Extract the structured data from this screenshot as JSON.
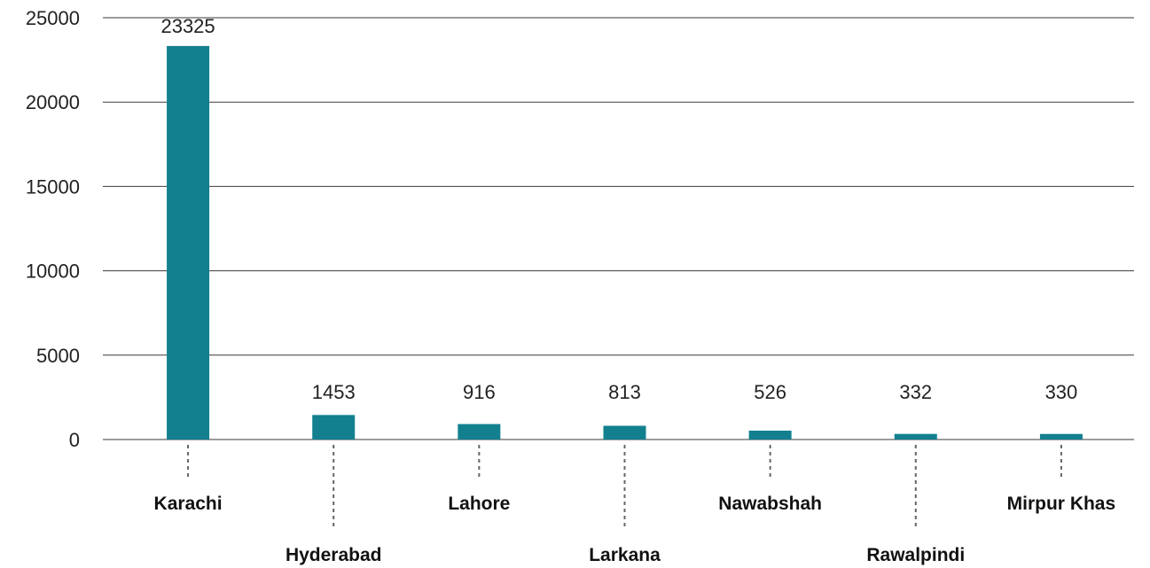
{
  "chart_data": {
    "type": "bar",
    "categories": [
      "Karachi",
      "Hyderabad",
      "Lahore",
      "Larkana",
      "Nawabshah",
      "Rawalpindi",
      "Mirpur Khas"
    ],
    "values": [
      23325,
      1453,
      916,
      813,
      526,
      332,
      330
    ],
    "title": "",
    "xlabel": "",
    "ylabel": "",
    "ylim": [
      0,
      25000
    ],
    "yticks": [
      0,
      5000,
      10000,
      15000,
      20000,
      25000
    ],
    "grid": true,
    "legend": "none",
    "data_labels": true,
    "bar_color": "#12808f"
  }
}
